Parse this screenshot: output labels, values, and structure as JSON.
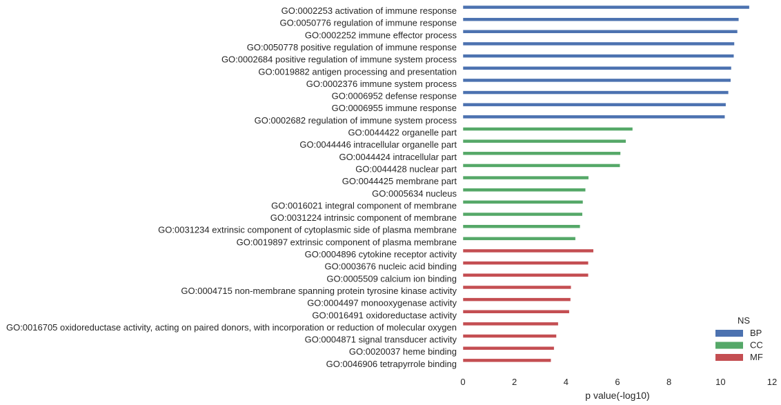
{
  "chart_data": {
    "type": "bar",
    "orientation": "horizontal",
    "xlabel": "p value(-log10)",
    "ylabel": "",
    "title": "",
    "xlim": [
      0,
      12
    ],
    "xticks": [
      "0",
      "2",
      "4",
      "6",
      "8",
      "10",
      "12"
    ],
    "grid": false,
    "legend": {
      "title": "NS",
      "placement": "bottom-right",
      "entries": [
        {
          "name": "BP",
          "color": "#4c72b0"
        },
        {
          "name": "CC",
          "color": "#55a868"
        },
        {
          "name": "MF",
          "color": "#c44e52"
        }
      ]
    },
    "categories": [
      "GO:0002253 activation of immune response",
      "GO:0050776 regulation of immune response",
      "GO:0002252 immune effector process",
      "GO:0050778 positive regulation of immune response",
      "GO:0002684 positive regulation of immune system process",
      "GO:0019882 antigen processing and presentation",
      "GO:0002376 immune system process",
      "GO:0006952 defense response",
      "GO:0006955 immune response",
      "GO:0002682 regulation of immune system process",
      "GO:0044422 organelle part",
      "GO:0044446 intracellular organelle part",
      "GO:0044424 intracellular part",
      "GO:0044428 nuclear part",
      "GO:0044425 membrane part",
      "GO:0005634 nucleus",
      "GO:0016021 integral component of membrane",
      "GO:0031224 intrinsic component of membrane",
      "GO:0031234 extrinsic component of cytoplasmic side of plasma membrane",
      "GO:0019897 extrinsic component of plasma membrane",
      "GO:0004896 cytokine receptor activity",
      "GO:0003676 nucleic acid binding",
      "GO:0005509 calcium ion binding",
      "GO:0004715 non-membrane spanning protein tyrosine kinase activity",
      "GO:0004497 monooxygenase activity",
      "GO:0016491 oxidoreductase activity",
      "GO:0016705 oxidoreductase activity, acting on paired donors, with incorporation or reduction of molecular oxygen",
      "GO:0004871 signal transducer activity",
      "GO:0020037 heme binding",
      "GO:0046906 tetrapyrrole binding"
    ],
    "groups": [
      "BP",
      "BP",
      "BP",
      "BP",
      "BP",
      "BP",
      "BP",
      "BP",
      "BP",
      "BP",
      "CC",
      "CC",
      "CC",
      "CC",
      "CC",
      "CC",
      "CC",
      "CC",
      "CC",
      "CC",
      "MF",
      "MF",
      "MF",
      "MF",
      "MF",
      "MF",
      "MF",
      "MF",
      "MF",
      "MF"
    ],
    "values": [
      11.12,
      10.71,
      10.66,
      10.54,
      10.52,
      10.42,
      10.4,
      10.31,
      10.21,
      10.17,
      6.59,
      6.33,
      6.12,
      6.1,
      4.88,
      4.76,
      4.66,
      4.64,
      4.55,
      4.37,
      5.07,
      4.87,
      4.87,
      4.2,
      4.18,
      4.13,
      3.7,
      3.63,
      3.54,
      3.42
    ]
  }
}
